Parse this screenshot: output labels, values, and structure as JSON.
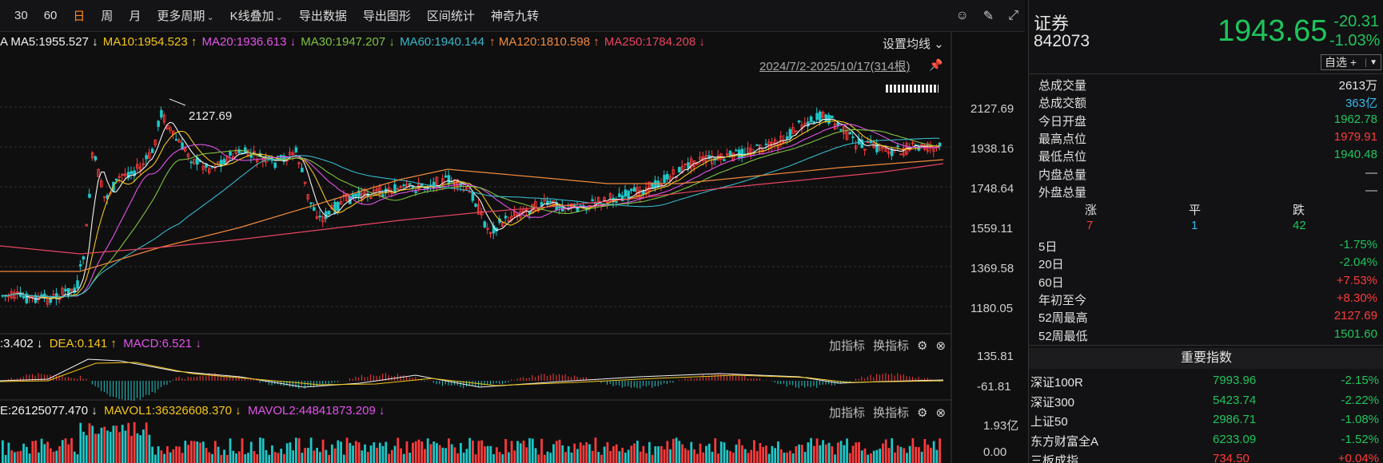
{
  "toolbar": {
    "items": [
      "30",
      "60",
      "日",
      "周",
      "月",
      "更多周期",
      "K线叠加",
      "导出数据",
      "导出图形",
      "区间统计",
      "神奇九转"
    ],
    "active_index": 2
  },
  "ma_legend": {
    "items": [
      {
        "text": "A MA5:1955.527 ↓",
        "color": "#f2f2f2"
      },
      {
        "text": "MA10:1954.523 ↑",
        "color": "#f5c518"
      },
      {
        "text": "MA20:1936.613 ↓",
        "color": "#e254e8"
      },
      {
        "text": "MA30:1947.207 ↓",
        "color": "#7fc242"
      },
      {
        "text": "MA60:1940.144",
        "color": "#38b8c8"
      },
      {
        "text": "↑ MA120:1810.598 ↑",
        "color": "#f08a3c"
      },
      {
        "text": "MA250:1784.208 ↓",
        "color": "#e84560"
      }
    ],
    "settings": "设置均线"
  },
  "date_range": "2024/7/2-2025/10/17(314根)",
  "y_axis": [
    "2127.69",
    "1938.16",
    "1748.64",
    "1559.11",
    "1369.58",
    "1180.05"
  ],
  "peak_label": "2127.69",
  "macd": {
    "items": [
      {
        "text": ":3.402 ↓",
        "color": "#f2f2f2"
      },
      {
        "text": " DEA:0.141 ↑",
        "color": "#f5c518"
      },
      {
        "text": " MACD:6.521 ↓",
        "color": "#e254e8"
      }
    ],
    "y_axis": [
      "135.81",
      "-61.81"
    ],
    "add": "加指标",
    "switch": "换指标"
  },
  "vol": {
    "items": [
      {
        "text": "E:26125077.470 ↓",
        "color": "#f2f2f2"
      },
      {
        "text": " MAVOL1:36326608.370 ↓",
        "color": "#f5c518"
      },
      {
        "text": " MAVOL2:44841873.209 ↓",
        "color": "#e254e8"
      }
    ],
    "y_axis": [
      "1.93亿",
      "0.00"
    ],
    "add": "加指标",
    "switch": "换指标"
  },
  "panel": {
    "name": "证券",
    "code": "842073",
    "price": "1943.65",
    "change": "-20.31",
    "pct": "-1.03%",
    "watch": "自选 +",
    "stats": [
      {
        "label": "总成交量",
        "value": "2613万",
        "color": "#e6e6e6"
      },
      {
        "label": "总成交额",
        "value": "363亿",
        "color": "#38b8e8"
      },
      {
        "label": "今日开盘",
        "value": "1962.78",
        "color": "#1fc45c"
      },
      {
        "label": "最高点位",
        "value": "1979.91",
        "color": "#ff3b3b"
      },
      {
        "label": "最低点位",
        "value": "1940.48",
        "color": "#1fc45c"
      },
      {
        "label": "内盘总量",
        "value": "—",
        "color": "#cfcfcf"
      },
      {
        "label": "外盘总量",
        "value": "—",
        "color": "#cfcfcf"
      }
    ],
    "breadth": {
      "up_label": "涨",
      "flat_label": "平",
      "down_label": "跌",
      "up": "7",
      "flat": "1",
      "down": "42"
    },
    "perf": [
      {
        "label": "5日",
        "value": "-1.75%",
        "color": "#1fc45c"
      },
      {
        "label": "20日",
        "value": "-2.04%",
        "color": "#1fc45c"
      },
      {
        "label": "60日",
        "value": "+7.53%",
        "color": "#ff3b3b"
      },
      {
        "label": "年初至今",
        "value": "+8.30%",
        "color": "#ff3b3b"
      },
      {
        "label": "52周最高",
        "value": "2127.69",
        "color": "#ff3b3b"
      },
      {
        "label": "52周最低",
        "value": "1501.60",
        "color": "#1fc45c"
      }
    ],
    "index_title": "重要指数",
    "indices": [
      {
        "name": "深证100R",
        "value": "7993.96",
        "pct": "-2.15%",
        "color": "#1fc45c"
      },
      {
        "name": "深证300",
        "value": "5423.74",
        "pct": "-2.22%",
        "color": "#1fc45c"
      },
      {
        "name": "上证50",
        "value": "2986.71",
        "pct": "-1.08%",
        "color": "#1fc45c"
      },
      {
        "name": "东方财富全A",
        "value": "6233.09",
        "pct": "-1.52%",
        "color": "#1fc45c"
      },
      {
        "name": "三板成指",
        "value": "734.50",
        "pct": "+0.04%",
        "color": "#ff3b3b"
      }
    ]
  },
  "colors": {
    "up": "#ff3b3b",
    "down": "#1fc8c8",
    "grid": "#3a3a3c"
  }
}
